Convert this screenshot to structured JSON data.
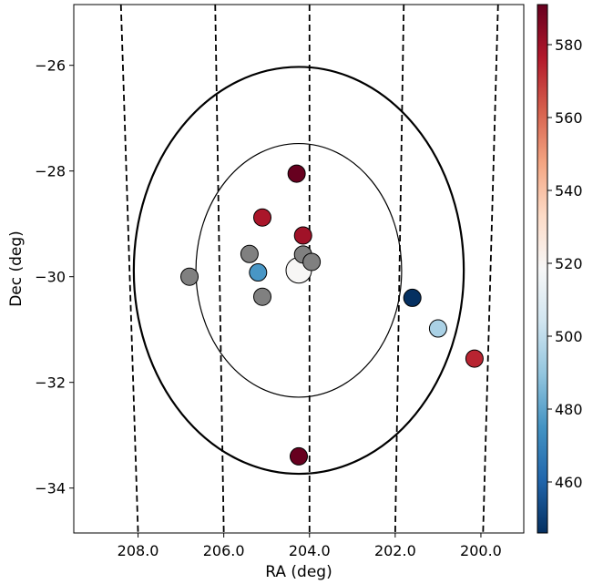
{
  "chart_data": {
    "type": "scatter",
    "xlabel": "RA (deg)",
    "ylabel": "Dec (deg)",
    "xlim": [
      209.5,
      199.0
    ],
    "ylim": [
      -34.85,
      -24.85
    ],
    "x_ticks": [
      208.0,
      206.0,
      204.0,
      202.0,
      200.0
    ],
    "x_tick_labels": [
      "208.0",
      "206.0",
      "204.0",
      "202.0",
      "200.0"
    ],
    "y_ticks": [
      -26,
      -28,
      -30,
      -32,
      -34
    ],
    "y_tick_labels": [
      "−26",
      "−28",
      "−30",
      "−32",
      "−34"
    ],
    "grid": false,
    "colorbar": {
      "colormap": "RdBu_r",
      "min": 446,
      "max": 591,
      "ticks": [
        460,
        480,
        500,
        520,
        540,
        560,
        580
      ],
      "tick_labels": [
        "460",
        "480",
        "500",
        "520",
        "540",
        "560",
        "580"
      ]
    },
    "points": [
      {
        "ra": 204.25,
        "dec": -29.88,
        "value": 519,
        "large": true
      },
      {
        "ra": 204.3,
        "dec": -28.05,
        "value": 591
      },
      {
        "ra": 205.1,
        "dec": -28.88,
        "value": 578
      },
      {
        "ra": 204.15,
        "dec": -29.22,
        "value": 580
      },
      {
        "ra": 204.15,
        "dec": -29.58,
        "value": null
      },
      {
        "ra": 203.95,
        "dec": -29.72,
        "value": null
      },
      {
        "ra": 205.4,
        "dec": -29.57,
        "value": null
      },
      {
        "ra": 205.2,
        "dec": -29.92,
        "value": 476
      },
      {
        "ra": 206.8,
        "dec": -30.0,
        "value": null
      },
      {
        "ra": 205.1,
        "dec": -30.38,
        "value": null
      },
      {
        "ra": 201.6,
        "dec": -30.4,
        "value": 446
      },
      {
        "ra": 201.0,
        "dec": -30.98,
        "value": 495
      },
      {
        "ra": 200.15,
        "dec": -31.55,
        "value": 574
      },
      {
        "ra": 204.25,
        "dec": -33.4,
        "value": 591
      }
    ],
    "missing_value_color": "#808080",
    "circles": [
      {
        "center_ra": 204.25,
        "center_dec": -29.88,
        "radius_deg": 3.85,
        "thick": true
      },
      {
        "center_ra": 204.25,
        "center_dec": -29.88,
        "radius_deg": 2.4,
        "thick": false
      }
    ],
    "dashed_lines": [
      {
        "top_ra": 208.4,
        "bottom_ra": 208.0
      },
      {
        "top_ra": 206.2,
        "bottom_ra": 206.0
      },
      {
        "top_ra": 204.0,
        "bottom_ra": 204.0
      },
      {
        "top_ra": 201.8,
        "bottom_ra": 202.0
      },
      {
        "top_ra": 199.6,
        "bottom_ra": 199.95
      }
    ]
  }
}
